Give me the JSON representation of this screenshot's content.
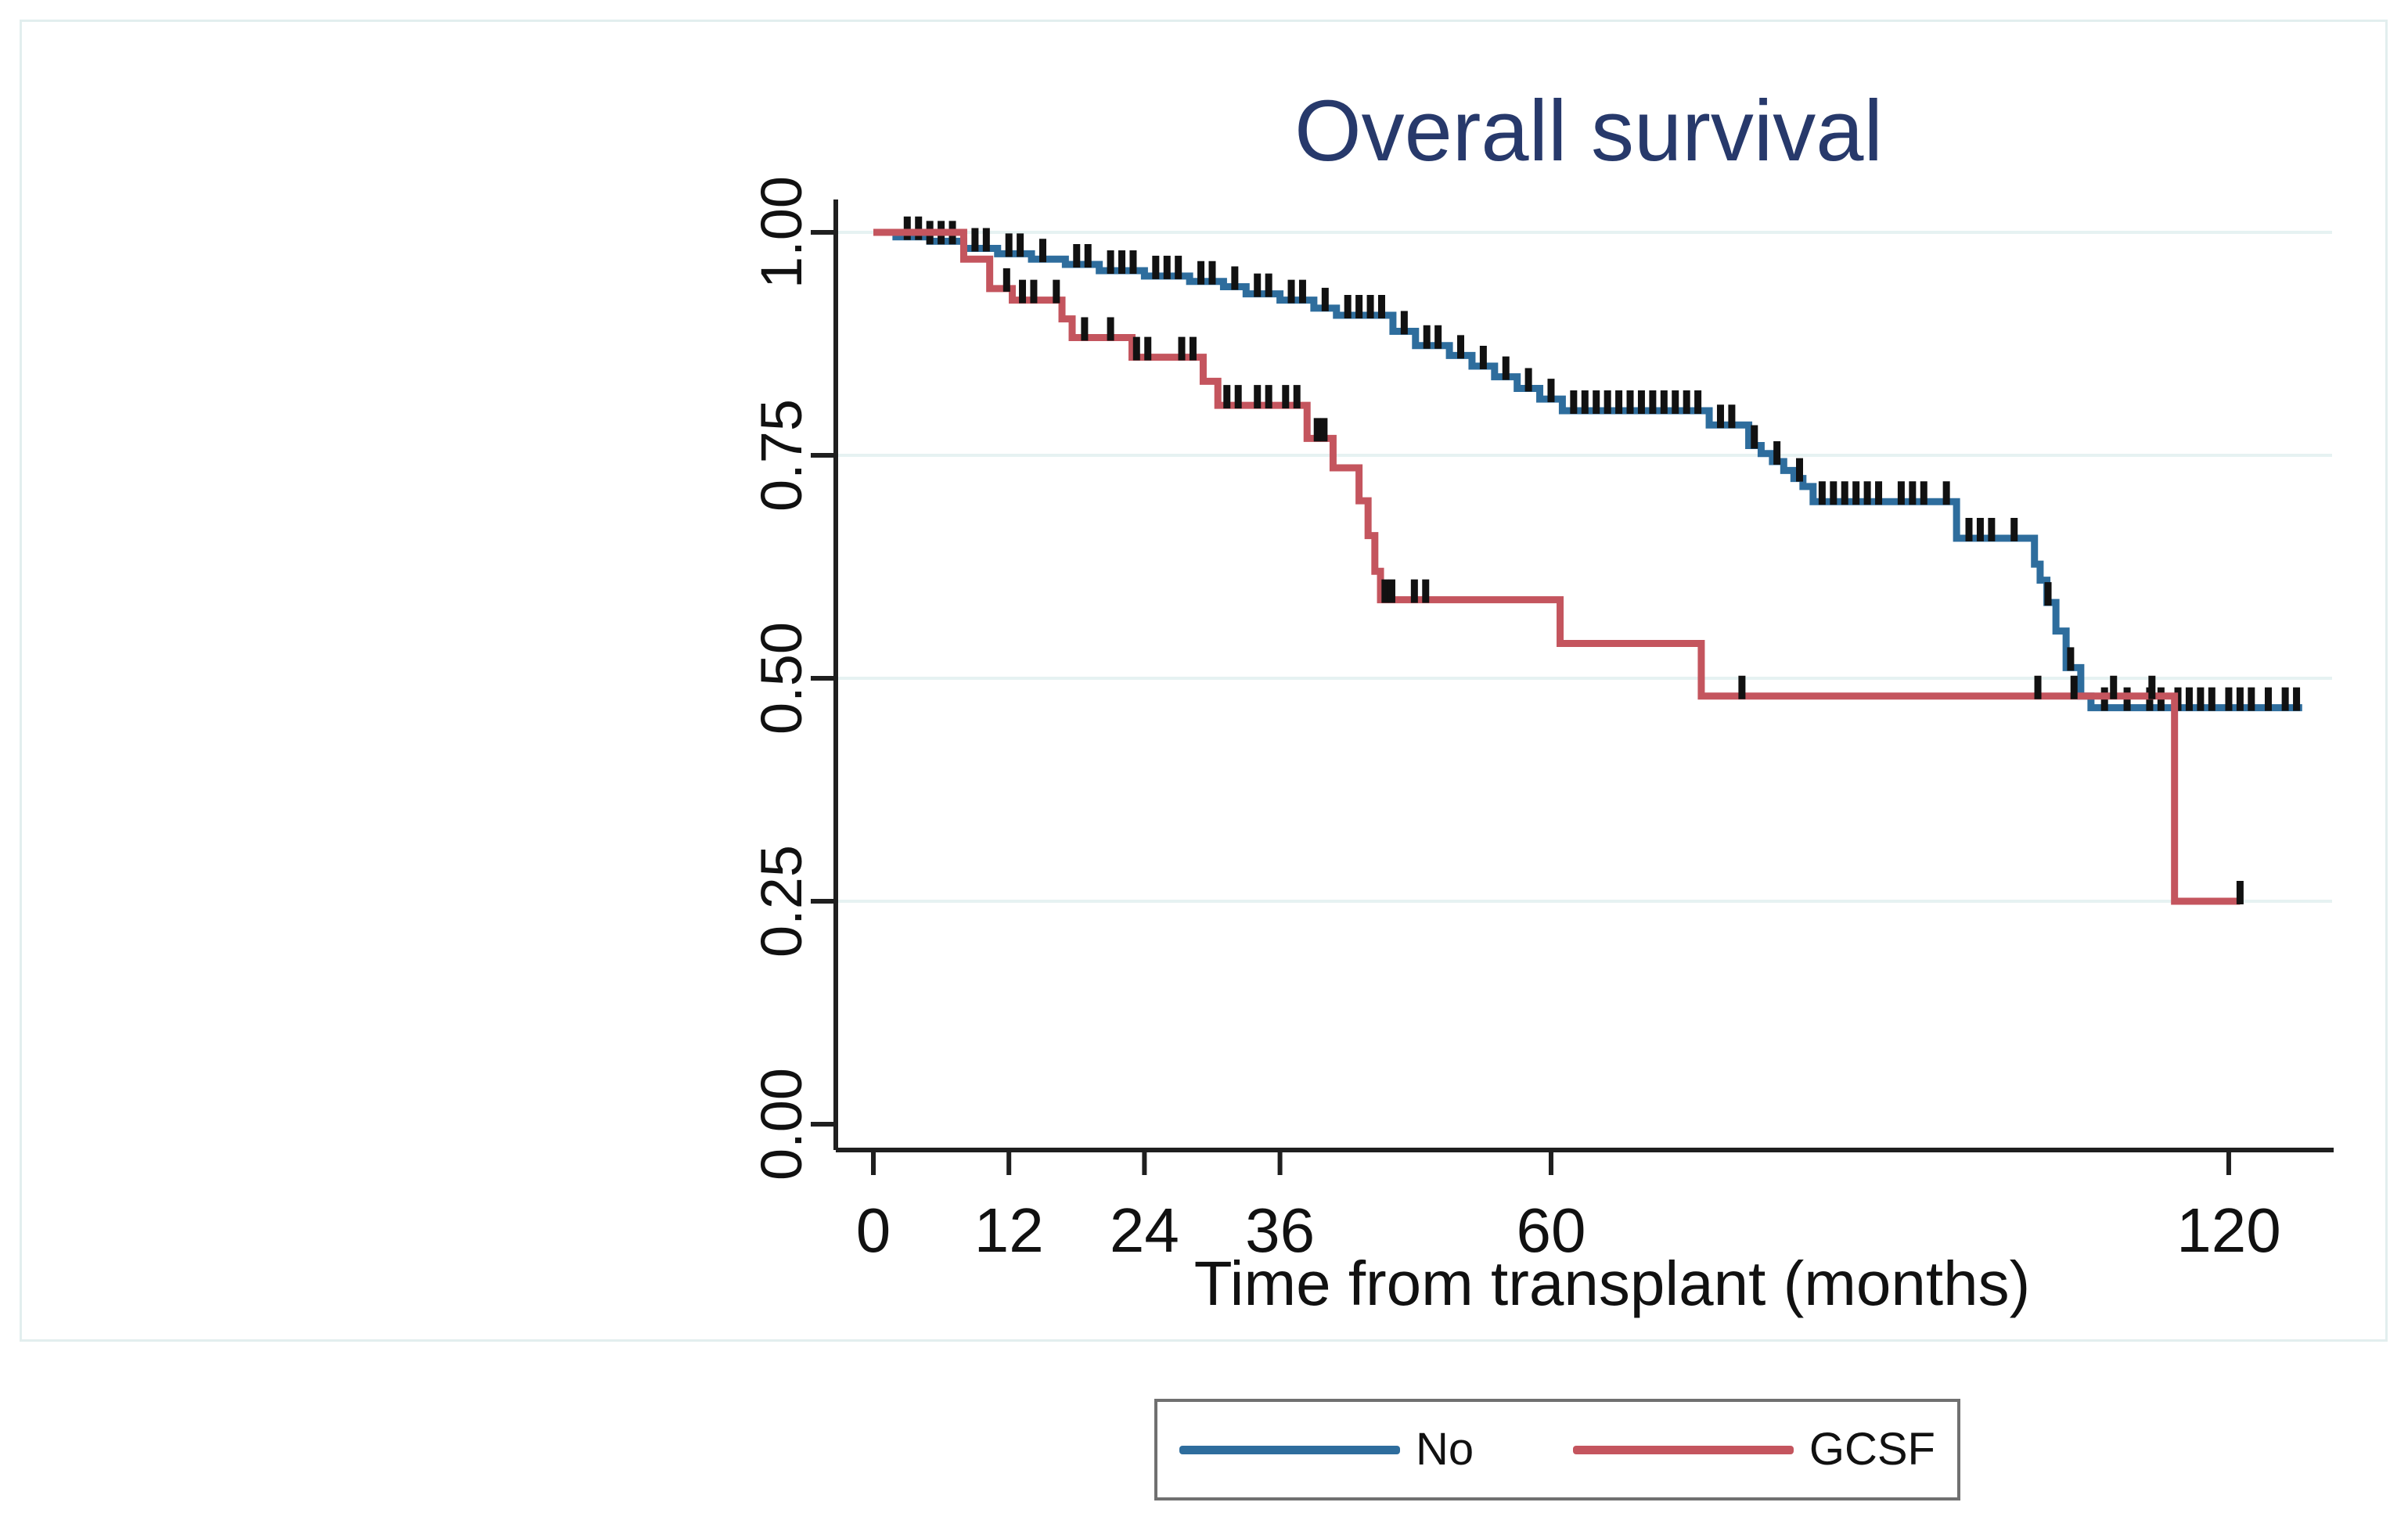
{
  "chart_data": {
    "type": "line",
    "subtype": "kaplan-meier-step",
    "title": "Overall survival",
    "xlabel": "Time from transplant (months)",
    "ylabel": "",
    "x_ticks": [
      "0",
      "12",
      "24",
      "36",
      "60",
      "120"
    ],
    "x_tick_values": [
      0,
      12,
      24,
      36,
      60,
      120
    ],
    "y_ticks": [
      {
        "label": "1.00",
        "value": 1.0
      },
      {
        "label": "0.75",
        "value": 0.75
      },
      {
        "label": "0.50",
        "value": 0.5
      },
      {
        "label": "0.25",
        "value": 0.25
      },
      {
        "label": "0.00",
        "value": 0.0
      }
    ],
    "y_gridlines": [
      1.0,
      0.75,
      0.5,
      0.25
    ],
    "xlim": [
      0,
      130
    ],
    "ylim": [
      0,
      1.0
    ],
    "grid": "horizontal-only",
    "legend_position": "bottom-center-boxed",
    "colors": {
      "title": "#27396b",
      "axis": "#1f1f1f",
      "gridline": "#e6f2f2",
      "frame": "#e2eeee",
      "censor_tick": "#111111"
    },
    "series": [
      {
        "name": "No",
        "color": "#2e6d9d",
        "steps": [
          [
            0,
            1.0
          ],
          [
            2,
            0.995
          ],
          [
            5,
            0.99
          ],
          [
            8,
            0.982
          ],
          [
            11,
            0.976
          ],
          [
            14,
            0.97
          ],
          [
            17,
            0.964
          ],
          [
            20,
            0.957
          ],
          [
            24,
            0.951
          ],
          [
            28,
            0.945
          ],
          [
            31,
            0.939
          ],
          [
            33,
            0.931
          ],
          [
            36,
            0.924
          ],
          [
            39,
            0.915
          ],
          [
            41,
            0.907
          ],
          [
            46,
            0.889
          ],
          [
            48,
            0.873
          ],
          [
            51,
            0.862
          ],
          [
            53,
            0.85
          ],
          [
            55,
            0.838
          ],
          [
            57,
            0.825
          ],
          [
            59,
            0.813
          ],
          [
            61,
            0.8
          ],
          [
            74,
            0.784
          ],
          [
            77.5,
            0.761
          ],
          [
            78.6,
            0.752
          ],
          [
            79.6,
            0.743
          ],
          [
            80.6,
            0.733
          ],
          [
            81.5,
            0.724
          ],
          [
            82.3,
            0.715
          ],
          [
            83.2,
            0.698
          ],
          [
            95.9,
            0.657
          ],
          [
            102.8,
            0.628
          ],
          [
            103.3,
            0.61
          ],
          [
            103.9,
            0.585
          ],
          [
            104.7,
            0.553
          ],
          [
            105.6,
            0.512
          ],
          [
            106.9,
            0.48
          ],
          [
            107.8,
            0.467
          ],
          [
            126.5,
            0.467
          ]
        ],
        "censors": [
          3,
          4,
          5,
          6,
          7,
          9,
          10,
          12,
          13,
          15,
          18,
          19,
          21,
          22,
          23,
          25,
          26,
          27,
          29,
          30,
          32,
          34,
          35,
          37,
          38,
          40,
          42,
          43,
          44,
          45,
          47,
          49,
          50,
          52,
          54,
          56,
          58,
          60,
          62,
          63,
          64,
          65,
          66,
          67,
          68,
          69,
          70,
          71,
          72,
          73,
          75,
          76,
          78,
          80,
          82,
          84,
          85,
          86,
          87,
          88,
          89,
          91,
          92,
          93,
          95,
          97,
          98,
          99,
          101,
          104,
          106,
          109,
          111,
          113,
          114,
          115.5,
          116.5,
          117.5,
          118.5,
          120,
          121,
          122,
          123.5,
          125,
          126
        ]
      },
      {
        "name": "GCSF",
        "color": "#c4555e",
        "steps": [
          [
            0,
            1.0
          ],
          [
            8,
            0.97
          ],
          [
            10.3,
            0.937
          ],
          [
            12.3,
            0.924
          ],
          [
            16.7,
            0.903
          ],
          [
            17.6,
            0.882
          ],
          [
            22.9,
            0.86
          ],
          [
            29.2,
            0.833
          ],
          [
            30.5,
            0.806
          ],
          [
            38.4,
            0.769
          ],
          [
            40.7,
            0.736
          ],
          [
            43.0,
            0.699
          ],
          [
            43.8,
            0.66
          ],
          [
            44.4,
            0.62
          ],
          [
            44.9,
            0.588
          ],
          [
            60.8,
            0.539
          ],
          [
            73.3,
            0.48
          ],
          [
            115.2,
            0.25
          ],
          [
            121,
            0.25
          ]
        ],
        "censors": [
          11.8,
          13.2,
          14.2,
          16.2,
          18.7,
          21,
          23.3,
          24.3,
          27.3,
          28.3,
          31.3,
          32.3,
          34,
          35,
          36.5,
          37.5,
          39.3,
          39.9,
          45.3,
          45.9,
          47.9,
          48.9,
          76.9,
          103.1,
          106.3,
          109.8,
          113.2,
          121
        ]
      }
    ]
  },
  "legend": {
    "items": [
      {
        "label": "No"
      },
      {
        "label": "GCSF"
      }
    ]
  }
}
